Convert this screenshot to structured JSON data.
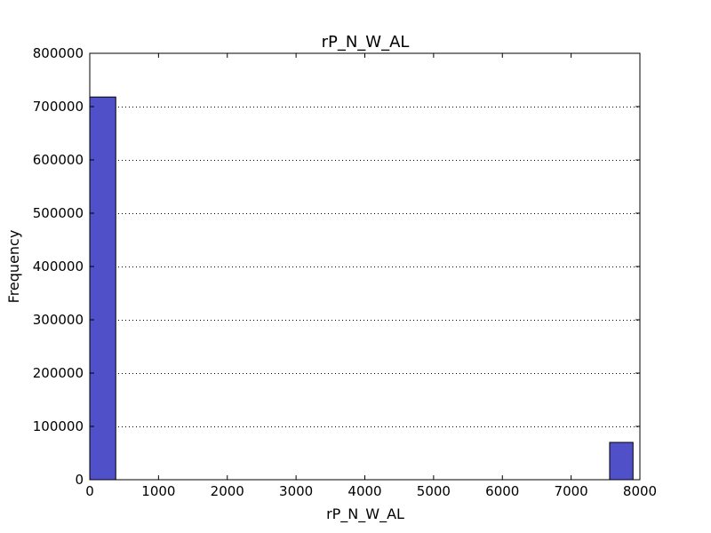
{
  "chart_data": {
    "type": "bar",
    "title": "rP_N_W_AL",
    "xlabel": "rP_N_W_AL",
    "ylabel": "Frequency",
    "xlim": [
      0,
      8000
    ],
    "ylim": [
      0,
      800000
    ],
    "xticks": [
      0,
      1000,
      2000,
      3000,
      4000,
      5000,
      6000,
      7000,
      8000
    ],
    "yticks": [
      0,
      100000,
      200000,
      300000,
      400000,
      500000,
      600000,
      700000,
      800000
    ],
    "grid": "horizontal dotted",
    "bar_color": "#5050c8",
    "bins": [
      {
        "x0": 0,
        "x1": 378,
        "count": 718000
      },
      {
        "x0": 7560,
        "x1": 7900,
        "count": 70000
      }
    ]
  }
}
